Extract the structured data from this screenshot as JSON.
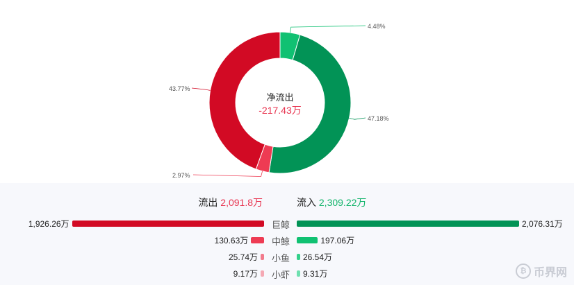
{
  "chart_data": [
    {
      "type": "pie",
      "center_title": "净流出",
      "center_value": "-217.43万",
      "slices": [
        {
          "label": "4.48%",
          "value": 4.48,
          "color": "#10c172"
        },
        {
          "label": "47.18%",
          "value": 47.18,
          "color": "#029356"
        },
        {
          "label": "2.97%",
          "value": 2.97,
          "color": "#ee3b53"
        },
        {
          "label": "43.77%",
          "value": 43.77,
          "color": "#d20a24"
        }
      ]
    },
    {
      "type": "bar",
      "title": "",
      "outflow": {
        "label": "流出",
        "total": "2,091.8万"
      },
      "inflow": {
        "label": "流入",
        "total": "2,309.22万"
      },
      "categories": [
        "巨鲸",
        "中鲸",
        "小鱼",
        "小虾"
      ],
      "series": [
        {
          "name": "流出",
          "values": [
            1926.26,
            130.63,
            25.74,
            9.17
          ],
          "labels": [
            "1,926.26万",
            "130.63万",
            "25.74万",
            "9.17万"
          ],
          "colors": [
            "#d20a24",
            "#ee3b53",
            "#f27a8b",
            "#f5a9b4"
          ]
        },
        {
          "name": "流入",
          "values": [
            2076.31,
            197.06,
            26.54,
            9.31
          ],
          "labels": [
            "2,076.31万",
            "197.06万",
            "26.54万",
            "9.31万"
          ],
          "colors": [
            "#029356",
            "#10c172",
            "#33d08a",
            "#6fe0b0"
          ]
        }
      ]
    }
  ],
  "watermark": {
    "text": "币界网",
    "icon": "bitcoin-icon"
  }
}
